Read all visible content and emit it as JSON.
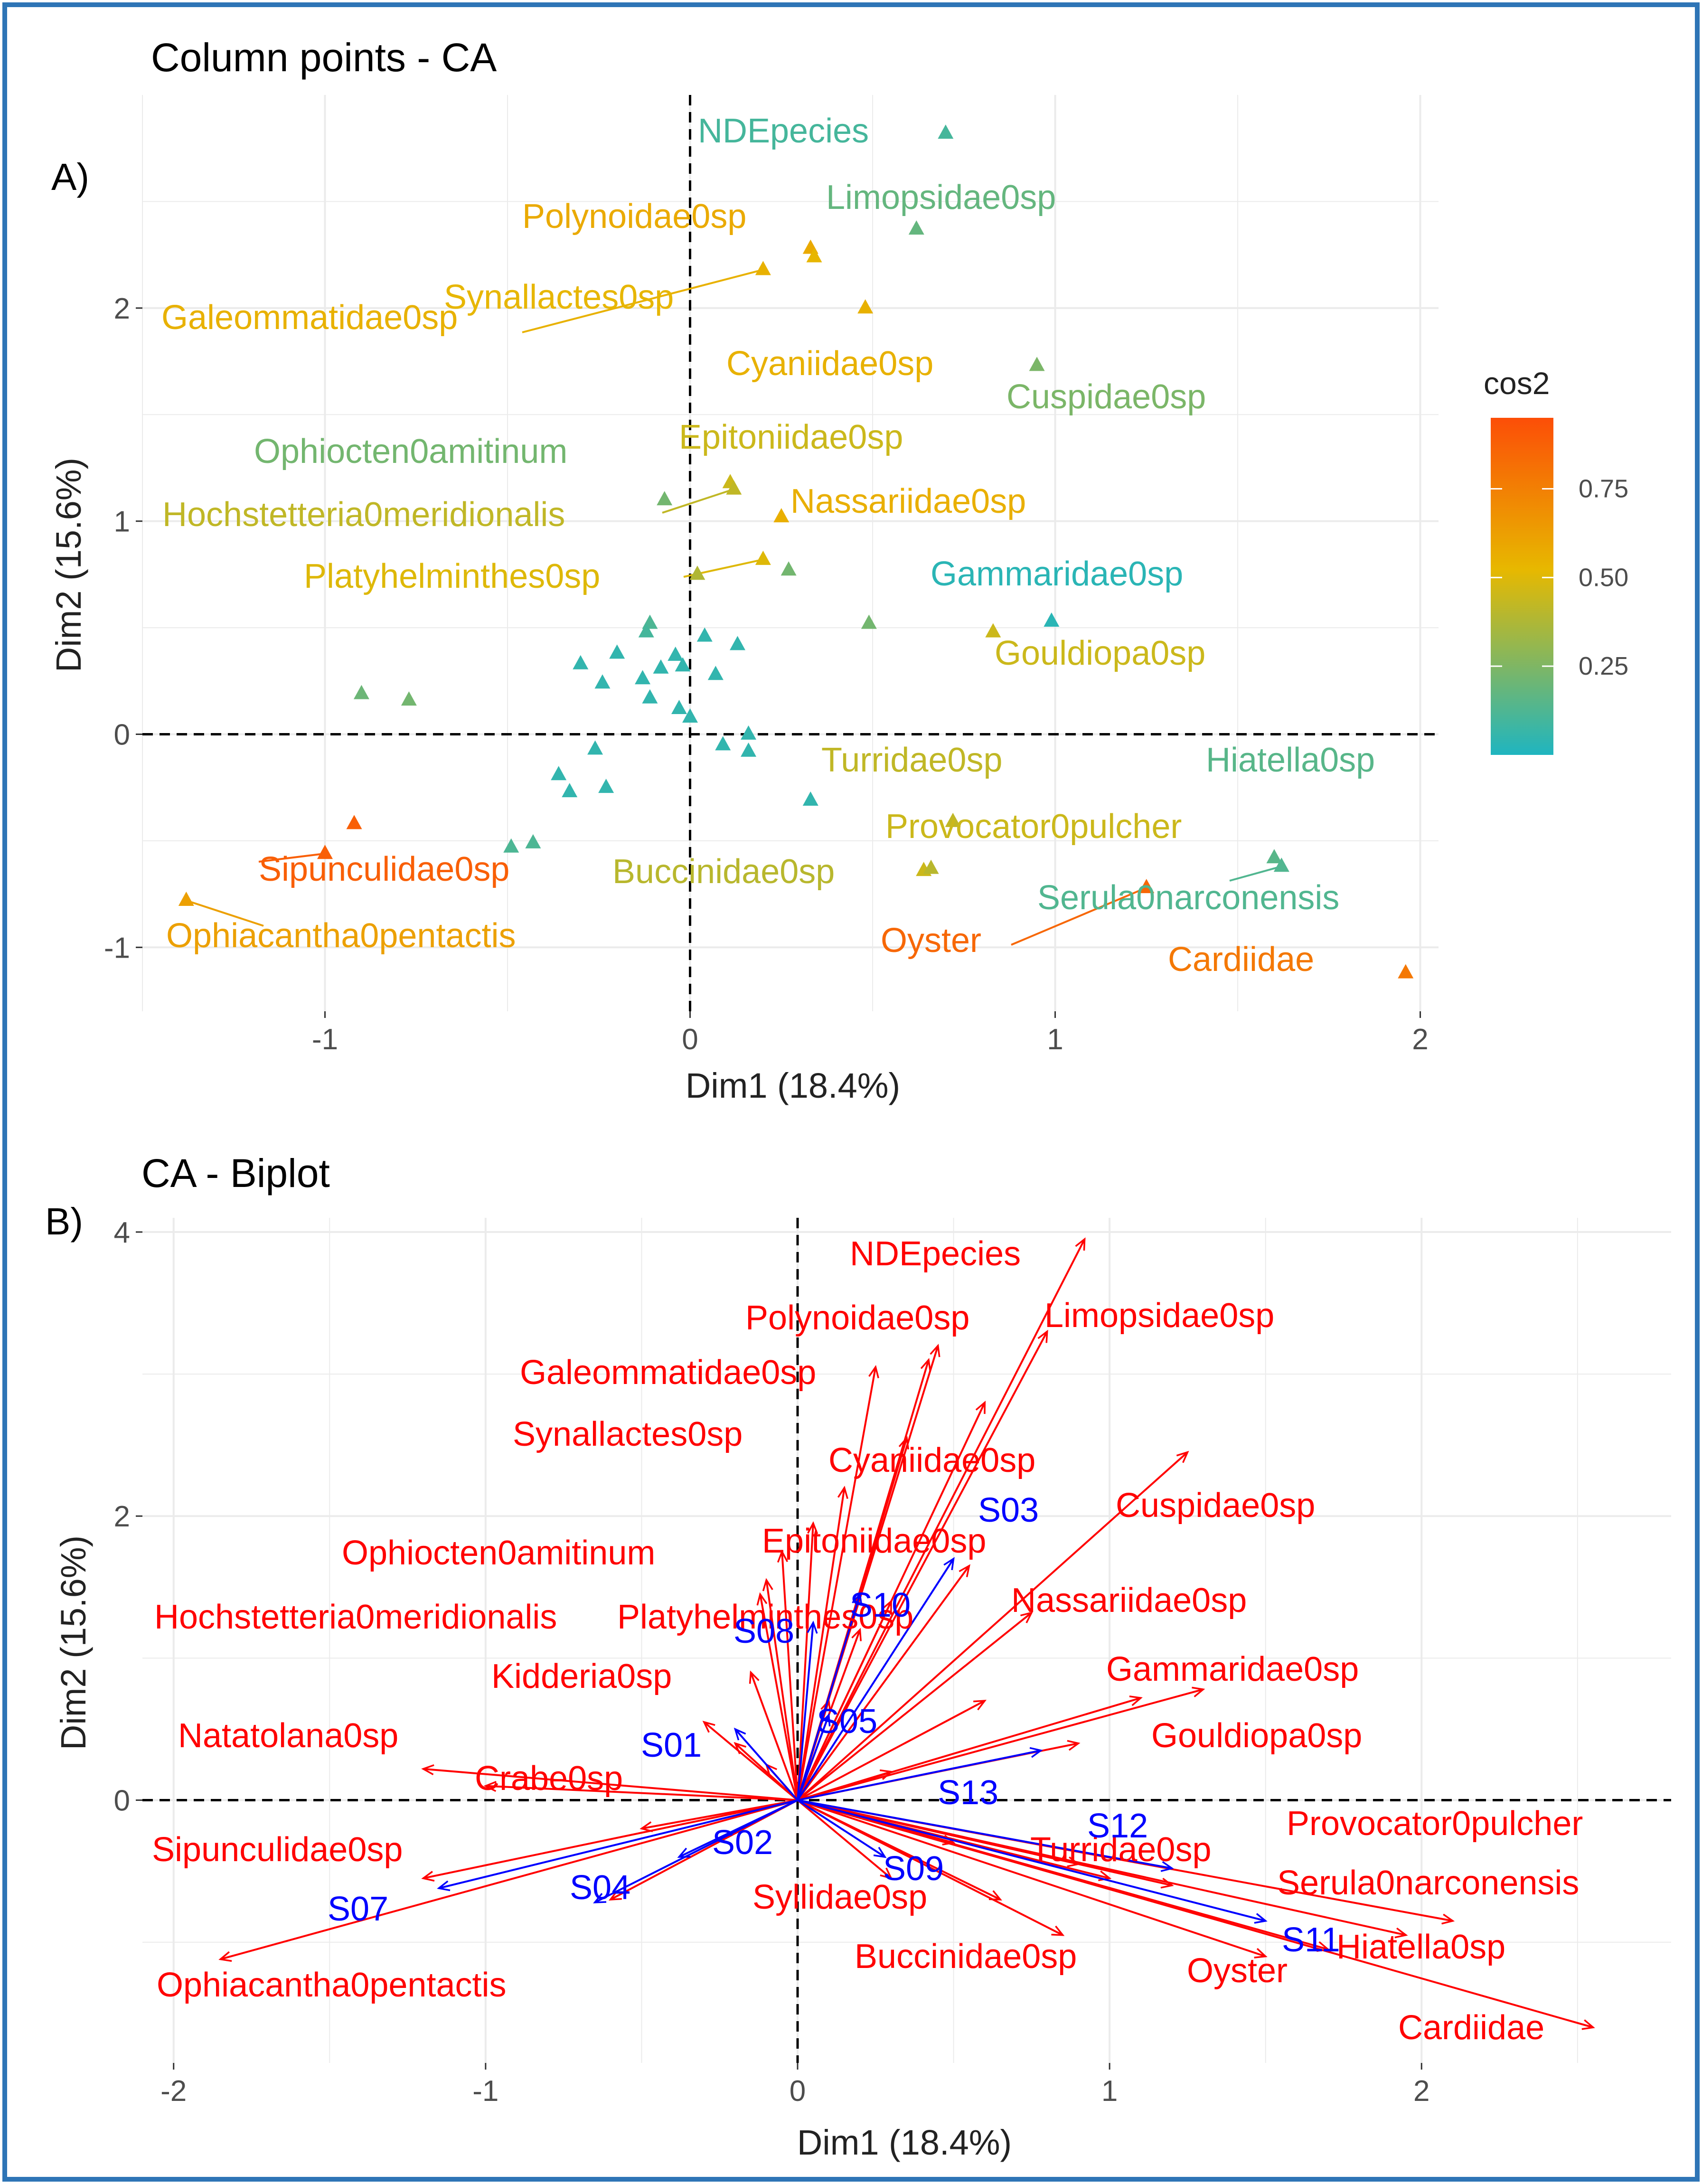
{
  "panel_a": {
    "letter": "A)",
    "chart_data": {
      "type": "scatter",
      "title": "Column points - CA",
      "xlabel": "Dim1 (18.4%)",
      "ylabel": "Dim2 (15.6%)",
      "xlim": [
        -1.5,
        2.05
      ],
      "ylim": [
        -1.3,
        3.0
      ],
      "xticks": [
        -1,
        0,
        1,
        2
      ],
      "yticks": [
        -1,
        0,
        1,
        2
      ],
      "xtick_labels": [
        "-1",
        "0",
        "1",
        "2"
      ],
      "ytick_labels": [
        "-1",
        "0",
        "1",
        "2"
      ],
      "legend": {
        "title": "cos2",
        "ticks": [
          0.25,
          0.5,
          0.75
        ],
        "tick_labels": [
          "0.25",
          "0.50",
          "0.75"
        ],
        "range": [
          0,
          0.95
        ],
        "colors": [
          "#1fb5c0",
          "#e7b800",
          "#fc4e07"
        ],
        "position": "right"
      },
      "labeled_points": [
        {
          "name": "NDEpecies",
          "x": 0.7,
          "y": 2.82,
          "cos2": 0.1
        },
        {
          "name": "Limopsidae0sp",
          "x": 0.62,
          "y": 2.37,
          "cos2": 0.18
        },
        {
          "name": "Polynoidae0sp",
          "x": 0.33,
          "y": 2.28,
          "cos2": 0.58
        },
        {
          "name": "Galeommatidae0sp",
          "x": 0.2,
          "y": 2.18,
          "cos2": 0.55
        },
        {
          "name": "Synallactes0sp",
          "x": 0.34,
          "y": 2.24,
          "cos2": 0.53
        },
        {
          "name": "Cyaniidae0sp",
          "x": 0.48,
          "y": 2.0,
          "cos2": 0.55
        },
        {
          "name": "Cuspidae0sp",
          "x": 0.95,
          "y": 1.73,
          "cos2": 0.24
        },
        {
          "name": "Ophiocten0amitinum",
          "x": -0.07,
          "y": 1.1,
          "cos2": 0.22
        },
        {
          "name": "Epitoniidae0sp",
          "x": 0.11,
          "y": 1.18,
          "cos2": 0.45
        },
        {
          "name": "Hochstetteria0meridionalis",
          "x": 0.12,
          "y": 1.15,
          "cos2": 0.42
        },
        {
          "name": "Nassariidae0sp",
          "x": 0.25,
          "y": 1.02,
          "cos2": 0.56
        },
        {
          "name": "Platyhelminthes0sp",
          "x": 0.2,
          "y": 0.82,
          "cos2": 0.5
        },
        {
          "name": "Gammaridae0sp",
          "x": 0.99,
          "y": 0.53,
          "cos2": 0.03
        },
        {
          "name": "Gouldiopa0sp",
          "x": 0.83,
          "y": 0.48,
          "cos2": 0.45
        },
        {
          "name": "Turridae0sp",
          "x": 0.72,
          "y": -0.41,
          "cos2": 0.42
        },
        {
          "name": "Hiatella0sp",
          "x": 1.6,
          "y": -0.58,
          "cos2": 0.15
        },
        {
          "name": "Provocator0pulcher",
          "x": 0.64,
          "y": -0.64,
          "cos2": 0.45
        },
        {
          "name": "Buccinidae0sp",
          "x": 0.66,
          "y": -0.63,
          "cos2": 0.4
        },
        {
          "name": "Serula0narconensis",
          "x": 1.62,
          "y": -0.62,
          "cos2": 0.13
        },
        {
          "name": "Oyster",
          "x": 1.25,
          "y": -0.72,
          "cos2": 0.85
        },
        {
          "name": "Cardiidae",
          "x": 1.96,
          "y": -1.12,
          "cos2": 0.78
        },
        {
          "name": "Sipunculidae0sp",
          "x": -1.0,
          "y": -0.56,
          "cos2": 0.88
        },
        {
          "name": "Ophiacantha0pentactis",
          "x": -1.38,
          "y": -0.78,
          "cos2": 0.62
        }
      ],
      "unlabeled_points": [
        {
          "x": 0.27,
          "y": 0.77,
          "cos2": 0.22
        },
        {
          "x": 0.02,
          "y": 0.75,
          "cos2": 0.38
        },
        {
          "x": 0.49,
          "y": 0.52,
          "cos2": 0.22
        },
        {
          "x": -0.11,
          "y": 0.52,
          "cos2": 0.12
        },
        {
          "x": -0.12,
          "y": 0.48,
          "cos2": 0.1
        },
        {
          "x": 0.04,
          "y": 0.46,
          "cos2": 0.05
        },
        {
          "x": 0.13,
          "y": 0.42,
          "cos2": 0.05
        },
        {
          "x": -0.2,
          "y": 0.38,
          "cos2": 0.05
        },
        {
          "x": -0.04,
          "y": 0.37,
          "cos2": 0.05
        },
        {
          "x": -0.3,
          "y": 0.33,
          "cos2": 0.05
        },
        {
          "x": -0.02,
          "y": 0.32,
          "cos2": 0.05
        },
        {
          "x": -0.08,
          "y": 0.31,
          "cos2": 0.05
        },
        {
          "x": 0.07,
          "y": 0.28,
          "cos2": 0.05
        },
        {
          "x": -0.13,
          "y": 0.26,
          "cos2": 0.05
        },
        {
          "x": -0.24,
          "y": 0.24,
          "cos2": 0.05
        },
        {
          "x": -0.9,
          "y": 0.19,
          "cos2": 0.2
        },
        {
          "x": -0.77,
          "y": 0.16,
          "cos2": 0.22
        },
        {
          "x": -0.11,
          "y": 0.17,
          "cos2": 0.05
        },
        {
          "x": -0.03,
          "y": 0.12,
          "cos2": 0.05
        },
        {
          "x": 0.0,
          "y": 0.08,
          "cos2": 0.05
        },
        {
          "x": 0.16,
          "y": 0.0,
          "cos2": 0.05
        },
        {
          "x": 0.09,
          "y": -0.05,
          "cos2": 0.05
        },
        {
          "x": 0.16,
          "y": -0.08,
          "cos2": 0.05
        },
        {
          "x": -0.26,
          "y": -0.07,
          "cos2": 0.05
        },
        {
          "x": -0.36,
          "y": -0.19,
          "cos2": 0.05
        },
        {
          "x": -0.23,
          "y": -0.25,
          "cos2": 0.05
        },
        {
          "x": -0.33,
          "y": -0.27,
          "cos2": 0.05
        },
        {
          "x": 0.33,
          "y": -0.31,
          "cos2": 0.05
        },
        {
          "x": -0.43,
          "y": -0.51,
          "cos2": 0.12
        },
        {
          "x": -0.49,
          "y": -0.53,
          "cos2": 0.12
        },
        {
          "x": -0.92,
          "y": -0.42,
          "cos2": 0.88
        }
      ]
    }
  },
  "panel_b": {
    "letter": "B)",
    "chart_data": {
      "type": "biplot",
      "title": "CA - Biplot",
      "xlabel": "Dim1 (18.4%)",
      "ylabel": "Dim2 (15.6%)",
      "xlim": [
        -2.1,
        2.8
      ],
      "ylim": [
        -1.85,
        4.1
      ],
      "xticks": [
        -2,
        -1,
        0,
        1,
        2
      ],
      "yticks": [
        0,
        2,
        4
      ],
      "xtick_labels": [
        "-2",
        "-1",
        "0",
        "1",
        "2"
      ],
      "ytick_labels": [
        "0",
        "2",
        "4"
      ],
      "species_color": "#ff0000",
      "site_color": "#0000ff",
      "species_arrows": [
        {
          "name": "NDEpecies",
          "x": 0.92,
          "y": 3.95
        },
        {
          "name": "Limopsidae0sp",
          "x": 0.8,
          "y": 3.3
        },
        {
          "name": "Polynoidae0sp",
          "x": 0.45,
          "y": 3.2
        },
        {
          "name": "Galeommatidae0sp",
          "x": 0.25,
          "y": 3.05
        },
        {
          "name": "Synallactes0sp",
          "x": 0.42,
          "y": 3.1
        },
        {
          "name": "Cyaniidae0sp",
          "x": 0.6,
          "y": 2.8
        },
        {
          "name": "Cuspidae0sp",
          "x": 1.25,
          "y": 2.45
        },
        {
          "name": "Ophiocten0amitinum",
          "x": -0.1,
          "y": 1.55
        },
        {
          "name": "Epitoniidae0sp",
          "x": 0.55,
          "y": 1.65
        },
        {
          "name": "Hochstetteria0meridionalis",
          "x": -0.12,
          "y": 1.45
        },
        {
          "name": "Platyhelminthes0sp",
          "x": 0.3,
          "y": 1.4
        },
        {
          "name": "Nassariidae0sp",
          "x": 0.75,
          "y": 1.32
        },
        {
          "name": "Kidderia0sp",
          "x": -0.15,
          "y": 0.9
        },
        {
          "name": "Gammaridae0sp",
          "x": 1.3,
          "y": 0.78
        },
        {
          "name": "Gouldiopa0sp",
          "x": 1.1,
          "y": 0.72
        },
        {
          "name": "Natatolana0sp",
          "x": -1.2,
          "y": 0.22
        },
        {
          "name": "Crabe0sp",
          "x": -1.0,
          "y": 0.1
        },
        {
          "name": "Sipunculidae0sp",
          "x": -1.2,
          "y": -0.55
        },
        {
          "name": "Ophiacantha0pentactis",
          "x": -1.85,
          "y": -1.12
        },
        {
          "name": "Syllidae0sp",
          "x": 0.3,
          "y": -0.55
        },
        {
          "name": "Buccinidae0sp",
          "x": 0.85,
          "y": -0.95
        },
        {
          "name": "Turridae0sp",
          "x": 1.2,
          "y": -0.6
        },
        {
          "name": "Provocator0pulcher",
          "x": 2.1,
          "y": -0.85
        },
        {
          "name": "Serula0narconensis",
          "x": 1.95,
          "y": -0.95
        },
        {
          "name": "Hiatella0sp",
          "x": 1.7,
          "y": -1.05
        },
        {
          "name": "Oyster",
          "x": 1.5,
          "y": -1.1
        },
        {
          "name": "Cardiidae",
          "x": 2.55,
          "y": -1.6
        }
      ],
      "extra_species_arrows": [
        {
          "x": 0.15,
          "y": 2.2
        },
        {
          "x": 0.35,
          "y": 2.55
        },
        {
          "x": -0.05,
          "y": 1.75
        },
        {
          "x": 0.05,
          "y": 1.95
        },
        {
          "x": 0.2,
          "y": 1.2
        },
        {
          "x": -0.3,
          "y": 0.55
        },
        {
          "x": -0.2,
          "y": 0.4
        },
        {
          "x": 0.6,
          "y": 0.7
        },
        {
          "x": 0.9,
          "y": 0.4
        },
        {
          "x": -0.5,
          "y": -0.2
        },
        {
          "x": -0.6,
          "y": -0.7
        },
        {
          "x": 0.5,
          "y": -0.3
        },
        {
          "x": 0.9,
          "y": -0.45
        },
        {
          "x": 0.1,
          "y": 0.7
        },
        {
          "x": -0.1,
          "y": 0.25
        },
        {
          "x": 0.3,
          "y": 0.2
        },
        {
          "x": 0.65,
          "y": -0.7
        },
        {
          "x": 1.0,
          "y": -0.55
        }
      ],
      "site_arrows": [
        {
          "name": "S03",
          "x": 0.5,
          "y": 1.7
        },
        {
          "name": "S10",
          "x": 0.2,
          "y": 1.45
        },
        {
          "name": "S08",
          "x": 0.05,
          "y": 1.25
        },
        {
          "name": "S05",
          "x": 0.1,
          "y": 0.6
        },
        {
          "name": "S01",
          "x": -0.2,
          "y": 0.5
        },
        {
          "name": "S13",
          "x": 0.78,
          "y": 0.35
        },
        {
          "name": "S02",
          "x": -0.38,
          "y": -0.4
        },
        {
          "name": "S09",
          "x": 0.28,
          "y": -0.4
        },
        {
          "name": "S12",
          "x": 1.2,
          "y": -0.48
        },
        {
          "name": "S04",
          "x": -0.65,
          "y": -0.72
        },
        {
          "name": "S07",
          "x": -1.15,
          "y": -0.62
        },
        {
          "name": "S11",
          "x": 1.5,
          "y": -0.85
        }
      ]
    }
  }
}
